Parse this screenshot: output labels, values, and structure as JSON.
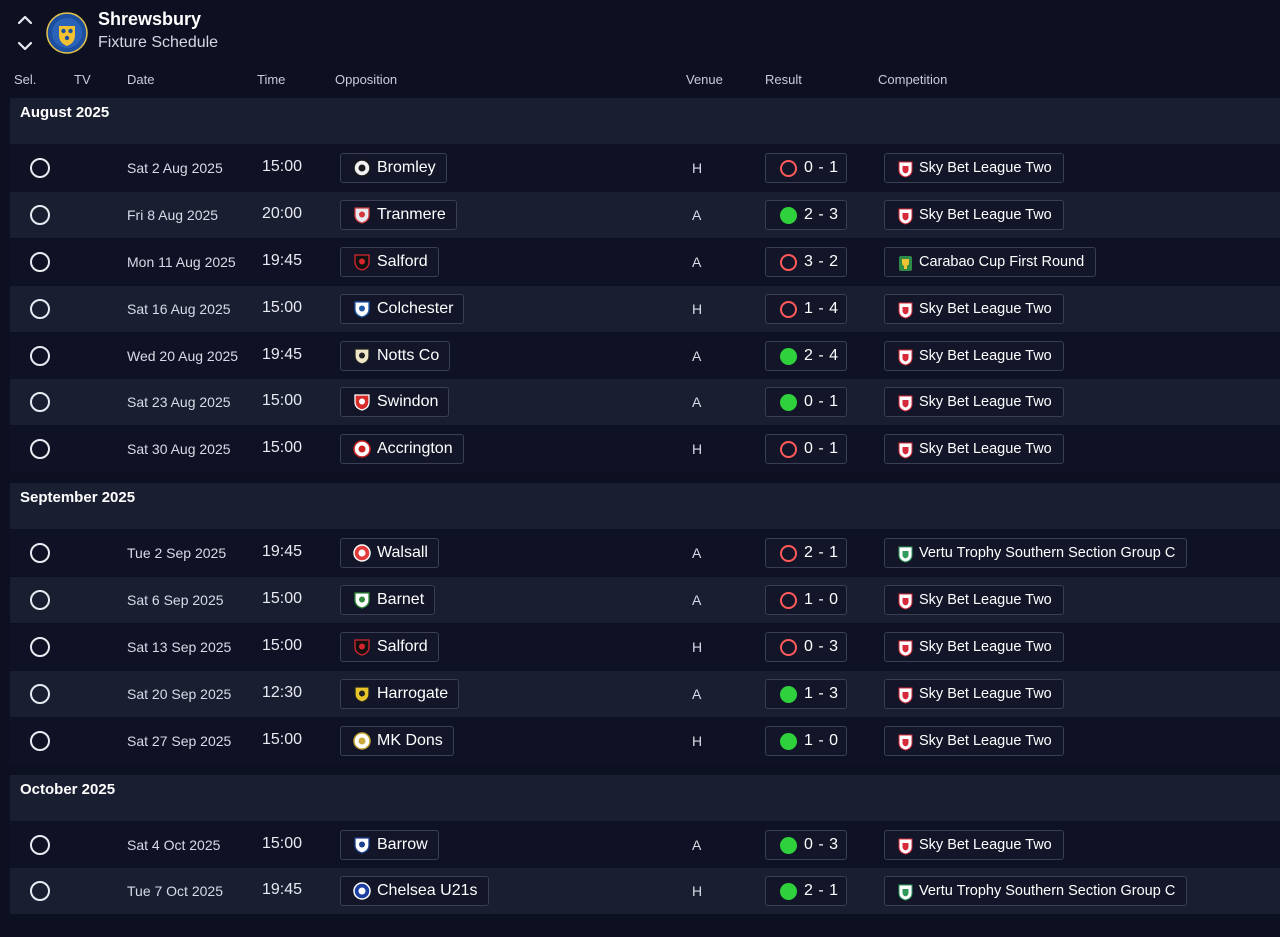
{
  "header": {
    "club_name": "Shrewsbury",
    "subtitle": "Fixture Schedule"
  },
  "columns": [
    "Sel.",
    "TV",
    "Date",
    "Time",
    "Opposition",
    "Venue",
    "Result",
    "Competition"
  ],
  "months": [
    {
      "label": "August 2025",
      "fixtures": [
        {
          "date": "Sat 2 Aug 2025",
          "time": "15:00",
          "opposition": "Bromley",
          "venue": "H",
          "result": "0 - 1",
          "outcome": "loss",
          "competition": "Sky Bet League Two",
          "comp_type": "league"
        },
        {
          "date": "Fri 8 Aug 2025",
          "time": "20:00",
          "opposition": "Tranmere",
          "venue": "A",
          "result": "2 - 3",
          "outcome": "win",
          "competition": "Sky Bet League Two",
          "comp_type": "league"
        },
        {
          "date": "Mon 11 Aug 2025",
          "time": "19:45",
          "opposition": "Salford",
          "venue": "A",
          "result": "3 - 2",
          "outcome": "loss",
          "competition": "Carabao Cup First Round",
          "comp_type": "cup"
        },
        {
          "date": "Sat 16 Aug 2025",
          "time": "15:00",
          "opposition": "Colchester",
          "venue": "H",
          "result": "1 - 4",
          "outcome": "loss",
          "competition": "Sky Bet League Two",
          "comp_type": "league"
        },
        {
          "date": "Wed 20 Aug 2025",
          "time": "19:45",
          "opposition": "Notts Co",
          "venue": "A",
          "result": "2 - 4",
          "outcome": "win",
          "competition": "Sky Bet League Two",
          "comp_type": "league"
        },
        {
          "date": "Sat 23 Aug 2025",
          "time": "15:00",
          "opposition": "Swindon",
          "venue": "A",
          "result": "0 - 1",
          "outcome": "win",
          "competition": "Sky Bet League Two",
          "comp_type": "league"
        },
        {
          "date": "Sat 30 Aug 2025",
          "time": "15:00",
          "opposition": "Accrington",
          "venue": "H",
          "result": "0 - 1",
          "outcome": "loss",
          "competition": "Sky Bet League Two",
          "comp_type": "league"
        }
      ]
    },
    {
      "label": "September 2025",
      "fixtures": [
        {
          "date": "Tue 2 Sep 2025",
          "time": "19:45",
          "opposition": "Walsall",
          "venue": "A",
          "result": "2 - 1",
          "outcome": "loss",
          "competition": "Vertu Trophy Southern Section Group C",
          "comp_type": "trophy"
        },
        {
          "date": "Sat 6 Sep 2025",
          "time": "15:00",
          "opposition": "Barnet",
          "venue": "A",
          "result": "1 - 0",
          "outcome": "loss",
          "competition": "Sky Bet League Two",
          "comp_type": "league"
        },
        {
          "date": "Sat 13 Sep 2025",
          "time": "15:00",
          "opposition": "Salford",
          "venue": "H",
          "result": "0 - 3",
          "outcome": "loss",
          "competition": "Sky Bet League Two",
          "comp_type": "league"
        },
        {
          "date": "Sat 20 Sep 2025",
          "time": "12:30",
          "opposition": "Harrogate",
          "venue": "A",
          "result": "1 - 3",
          "outcome": "win",
          "competition": "Sky Bet League Two",
          "comp_type": "league"
        },
        {
          "date": "Sat 27 Sep 2025",
          "time": "15:00",
          "opposition": "MK Dons",
          "venue": "H",
          "result": "1 - 0",
          "outcome": "win",
          "competition": "Sky Bet League Two",
          "comp_type": "league"
        }
      ]
    },
    {
      "label": "October 2025",
      "fixtures": [
        {
          "date": "Sat 4 Oct 2025",
          "time": "15:00",
          "opposition": "Barrow",
          "venue": "A",
          "result": "0 - 3",
          "outcome": "win",
          "competition": "Sky Bet League Two",
          "comp_type": "league"
        },
        {
          "date": "Tue 7 Oct 2025",
          "time": "19:45",
          "opposition": "Chelsea U21s",
          "venue": "H",
          "result": "2 - 1",
          "outcome": "win",
          "competition": "Vertu Trophy Southern Section Group C",
          "comp_type": "trophy"
        }
      ]
    }
  ],
  "team_badges": {
    "Bromley": {
      "icon": "bromley-badge-icon",
      "primary": "#f2f2f2",
      "secondary": "#1b1b1b"
    },
    "Tranmere": {
      "icon": "tranmere-badge-icon",
      "primary": "#e8e8f0",
      "secondary": "#d23a3a"
    },
    "Salford": {
      "icon": "salford-badge-icon",
      "primary": "#111111",
      "secondary": "#d8262f"
    },
    "Colchester": {
      "icon": "colchester-badge-icon",
      "primary": "#ffffff",
      "secondary": "#1e5aa8"
    },
    "Notts Co": {
      "icon": "notts-county-badge-icon",
      "primary": "#f0e7c9",
      "secondary": "#222222"
    },
    "Swindon": {
      "icon": "swindon-badge-icon",
      "primary": "#d92a2a",
      "secondary": "#ffffff"
    },
    "Accrington": {
      "icon": "accrington-badge-icon",
      "primary": "#ffffff",
      "secondary": "#cc2222"
    },
    "Walsall": {
      "icon": "walsall-badge-icon",
      "primary": "#e23a3a",
      "secondary": "#ffffff"
    },
    "Barnet": {
      "icon": "barnet-badge-icon",
      "primary": "#ffffff",
      "secondary": "#2f8a3b"
    },
    "Harrogate": {
      "icon": "harrogate-badge-icon",
      "primary": "#e7c52b",
      "secondary": "#222222"
    },
    "MK Dons": {
      "icon": "mk-dons-badge-icon",
      "primary": "#ffffff",
      "secondary": "#c9a93a"
    },
    "Barrow": {
      "icon": "barrow-badge-icon",
      "primary": "#ffffff",
      "secondary": "#1d3f8f"
    },
    "Chelsea U21s": {
      "icon": "chelsea-badge-icon",
      "primary": "#1c3fa0",
      "secondary": "#ffffff"
    }
  },
  "comp_badges": {
    "league": {
      "icon": "league-two-badge-icon",
      "primary": "#ffffff",
      "secondary": "#d62a3a"
    },
    "cup": {
      "icon": "carabao-cup-badge-icon",
      "primary": "#f1c232",
      "secondary": "#2e8b47"
    },
    "trophy": {
      "icon": "vertu-trophy-badge-icon",
      "primary": "#ffffff",
      "secondary": "#2e9b5a"
    }
  },
  "colors": {
    "background": "#0d1020",
    "row_alt": "#1a1e31",
    "win": "#2fd13c",
    "loss": "#ff5a5a"
  }
}
